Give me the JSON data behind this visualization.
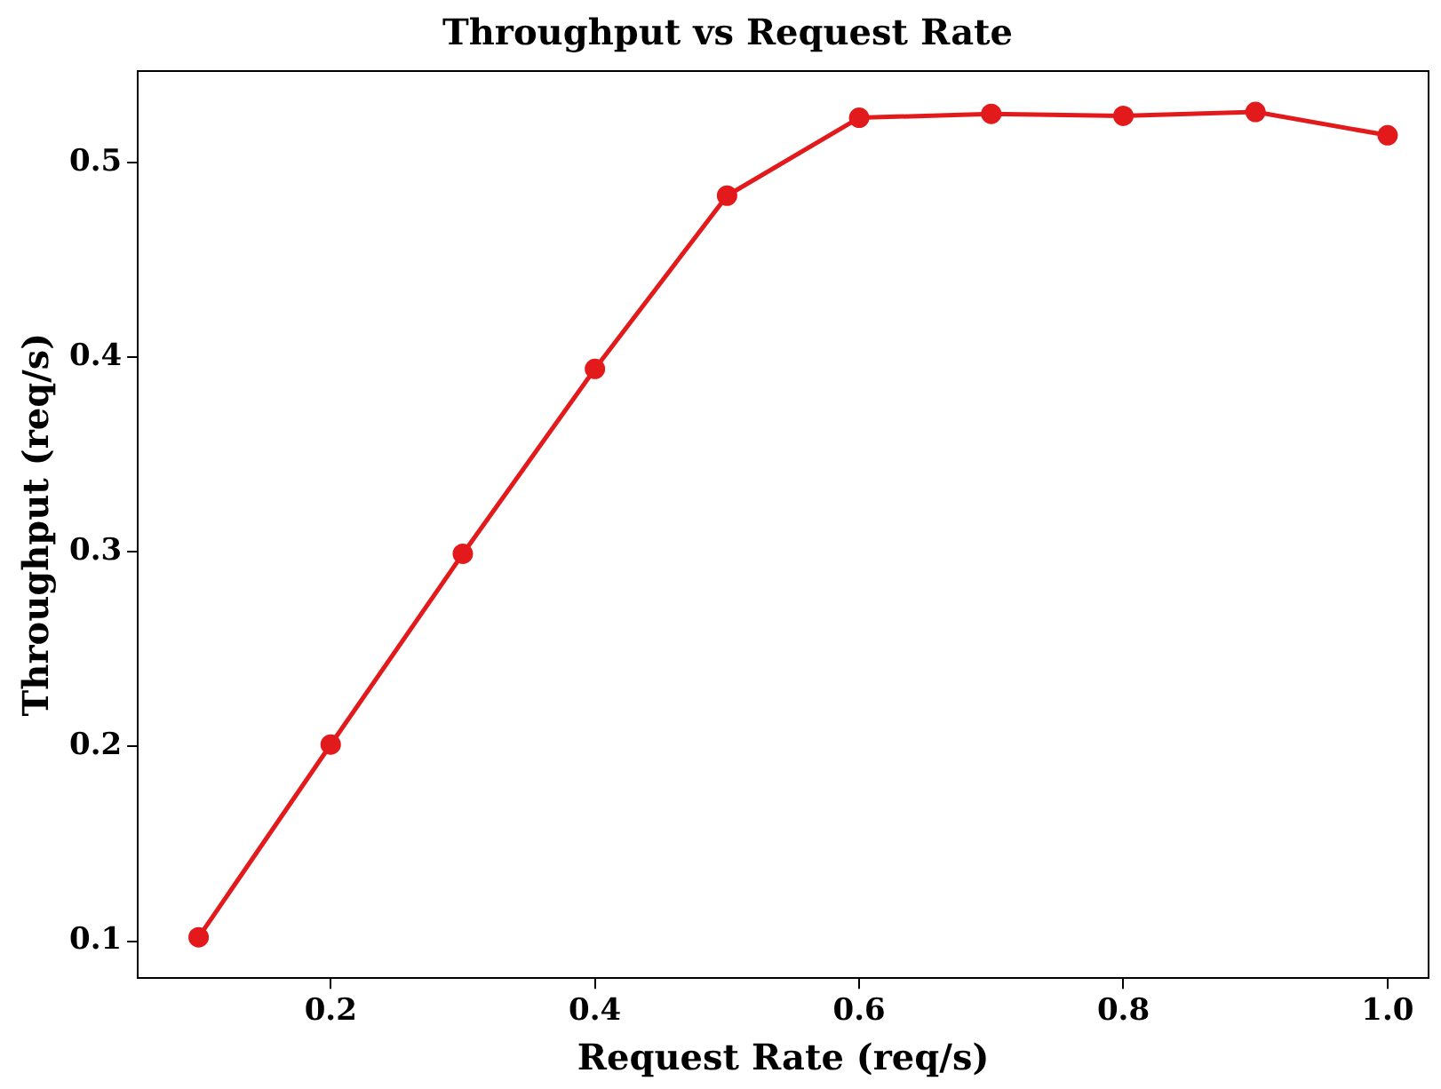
{
  "chart_data": {
    "type": "line",
    "title": "Throughput vs Request Rate",
    "xlabel": "Request Rate (req/s)",
    "ylabel": "Throughput (req/s)",
    "x": [
      0.1,
      0.2,
      0.3,
      0.4,
      0.5,
      0.6,
      0.7,
      0.8,
      0.9,
      1.0
    ],
    "series": [
      {
        "color": "#e31a1c",
        "values": [
          0.102,
          0.201,
          0.299,
          0.394,
          0.483,
          0.523,
          0.525,
          0.524,
          0.526,
          0.514
        ]
      }
    ],
    "xlim": [
      0.054,
      1.031
    ],
    "xticks": [
      0.2,
      0.4,
      0.6,
      0.8,
      {
        "value": 1.0,
        "label": "1.0"
      }
    ],
    "ylim": [
      0.081,
      0.547
    ],
    "yticks": [
      0.1,
      0.2,
      0.3,
      0.4,
      0.5
    ],
    "grid": false,
    "legend": false,
    "marker": "circle",
    "line_style": "solid"
  }
}
